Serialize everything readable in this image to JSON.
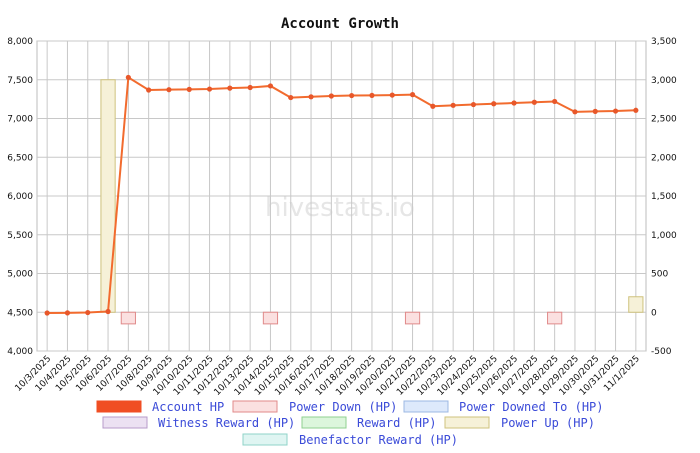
{
  "chart_data": {
    "type": "line",
    "title": "Account Growth",
    "watermark": "hivestats.io",
    "x": [
      "10/3/2025",
      "10/4/2025",
      "10/5/2025",
      "10/6/2025",
      "10/7/2025",
      "10/8/2025",
      "10/9/2025",
      "10/10/2025",
      "10/11/2025",
      "10/12/2025",
      "10/13/2025",
      "10/14/2025",
      "10/15/2025",
      "10/16/2025",
      "10/17/2025",
      "10/18/2025",
      "10/19/2025",
      "10/20/2025",
      "10/21/2025",
      "10/22/2025",
      "10/23/2025",
      "10/24/2025",
      "10/25/2025",
      "10/26/2025",
      "10/27/2025",
      "10/28/2025",
      "10/29/2025",
      "10/30/2025",
      "10/31/2025",
      "11/1/2025"
    ],
    "y_left": {
      "min": 4000,
      "max": 8000,
      "ticks": [
        "4,000",
        "4,500",
        "5,000",
        "5,500",
        "6,000",
        "6,500",
        "7,000",
        "7,500",
        "8,000"
      ]
    },
    "y_right": {
      "min": -500,
      "max": 3500,
      "ticks": [
        "-500",
        "0",
        "500",
        "1,000",
        "1,500",
        "2,000",
        "2,500",
        "3,000",
        "3,500"
      ]
    },
    "grid": true,
    "legend_position": "bottom",
    "series": [
      {
        "name": "Account HP",
        "axis": "left",
        "kind": "line",
        "color": "#f26b2e",
        "values": [
          4490,
          4492,
          4496,
          4510,
          7530,
          7368,
          7372,
          7376,
          7380,
          7392,
          7400,
          7420,
          7270,
          7280,
          7290,
          7296,
          7298,
          7302,
          7308,
          7158,
          7170,
          7180,
          7190,
          7200,
          7210,
          7220,
          7086,
          7092,
          7096,
          7106
        ]
      },
      {
        "name": "Power Down (HP)",
        "axis": "right",
        "kind": "bar",
        "fill": "#fbe0e0",
        "stroke": "#e08a8a",
        "values": [
          0,
          0,
          0,
          0,
          -150,
          0,
          0,
          0,
          0,
          0,
          0,
          -150,
          0,
          0,
          0,
          0,
          0,
          0,
          -150,
          0,
          0,
          0,
          0,
          0,
          0,
          -150,
          0,
          0,
          0,
          0
        ]
      },
      {
        "name": "Power Downed To (HP)",
        "axis": "right",
        "kind": "bar",
        "fill": "#dde9fb",
        "stroke": "#9cb8e3",
        "values": [
          0,
          0,
          0,
          0,
          0,
          0,
          0,
          0,
          0,
          0,
          0,
          0,
          0,
          0,
          0,
          0,
          0,
          0,
          0,
          0,
          0,
          0,
          0,
          0,
          0,
          0,
          0,
          0,
          0,
          0
        ]
      },
      {
        "name": "Witness Reward (HP)",
        "axis": "right",
        "kind": "bar",
        "fill": "#ece1f2",
        "stroke": "#b79bc9",
        "values": [
          0,
          0,
          0,
          0,
          0,
          0,
          0,
          0,
          0,
          0,
          0,
          0,
          0,
          0,
          0,
          0,
          0,
          0,
          0,
          0,
          0,
          0,
          0,
          0,
          0,
          0,
          0,
          0,
          0,
          0
        ]
      },
      {
        "name": "Reward (HP)",
        "axis": "right",
        "kind": "bar",
        "fill": "#dcf6dc",
        "stroke": "#8fd08f",
        "values": [
          0,
          0,
          0,
          0,
          0,
          0,
          0,
          0,
          0,
          0,
          0,
          0,
          0,
          0,
          0,
          0,
          0,
          0,
          0,
          0,
          0,
          0,
          0,
          0,
          0,
          0,
          0,
          0,
          0,
          0
        ]
      },
      {
        "name": "Power Up (HP)",
        "axis": "right",
        "kind": "bar",
        "fill": "#f6f1d8",
        "stroke": "#cfc27d",
        "values": [
          0,
          0,
          0,
          3000,
          0,
          0,
          0,
          0,
          0,
          0,
          0,
          0,
          0,
          0,
          0,
          0,
          0,
          0,
          0,
          0,
          0,
          0,
          0,
          0,
          0,
          0,
          0,
          0,
          0,
          200
        ]
      },
      {
        "name": "Benefactor Reward (HP)",
        "axis": "right",
        "kind": "bar",
        "fill": "#dff5f2",
        "stroke": "#8fd3c8",
        "values": [
          0,
          0,
          0,
          0,
          0,
          0,
          0,
          0,
          0,
          0,
          0,
          0,
          0,
          0,
          0,
          0,
          0,
          0,
          0,
          0,
          0,
          0,
          0,
          0,
          0,
          0,
          0,
          0,
          0,
          0
        ]
      }
    ],
    "legend": [
      {
        "name": "Account HP",
        "color": "#f26b2e",
        "fill": "#f04e23",
        "stroke": "#f04e23",
        "text_color": "#3b4bd8"
      },
      {
        "name": "Power Down (HP)",
        "fill": "#fbe0e0",
        "stroke": "#e08a8a",
        "text_color": "#3b4bd8"
      },
      {
        "name": "Power Downed To (HP)",
        "fill": "#dde9fb",
        "stroke": "#9cb8e3",
        "text_color": "#3b4bd8"
      },
      {
        "name": "Witness Reward (HP)",
        "fill": "#ece1f2",
        "stroke": "#b79bc9",
        "text_color": "#3b4bd8"
      },
      {
        "name": "Reward (HP)",
        "fill": "#dcf6dc",
        "stroke": "#8fd08f",
        "text_color": "#3b4bd8"
      },
      {
        "name": "Power Up (HP)",
        "fill": "#f6f1d8",
        "stroke": "#cfc27d",
        "text_color": "#3b4bd8"
      },
      {
        "name": "Benefactor Reward (HP)",
        "fill": "#dff5f2",
        "stroke": "#8fd3c8",
        "text_color": "#3b4bd8"
      }
    ]
  }
}
